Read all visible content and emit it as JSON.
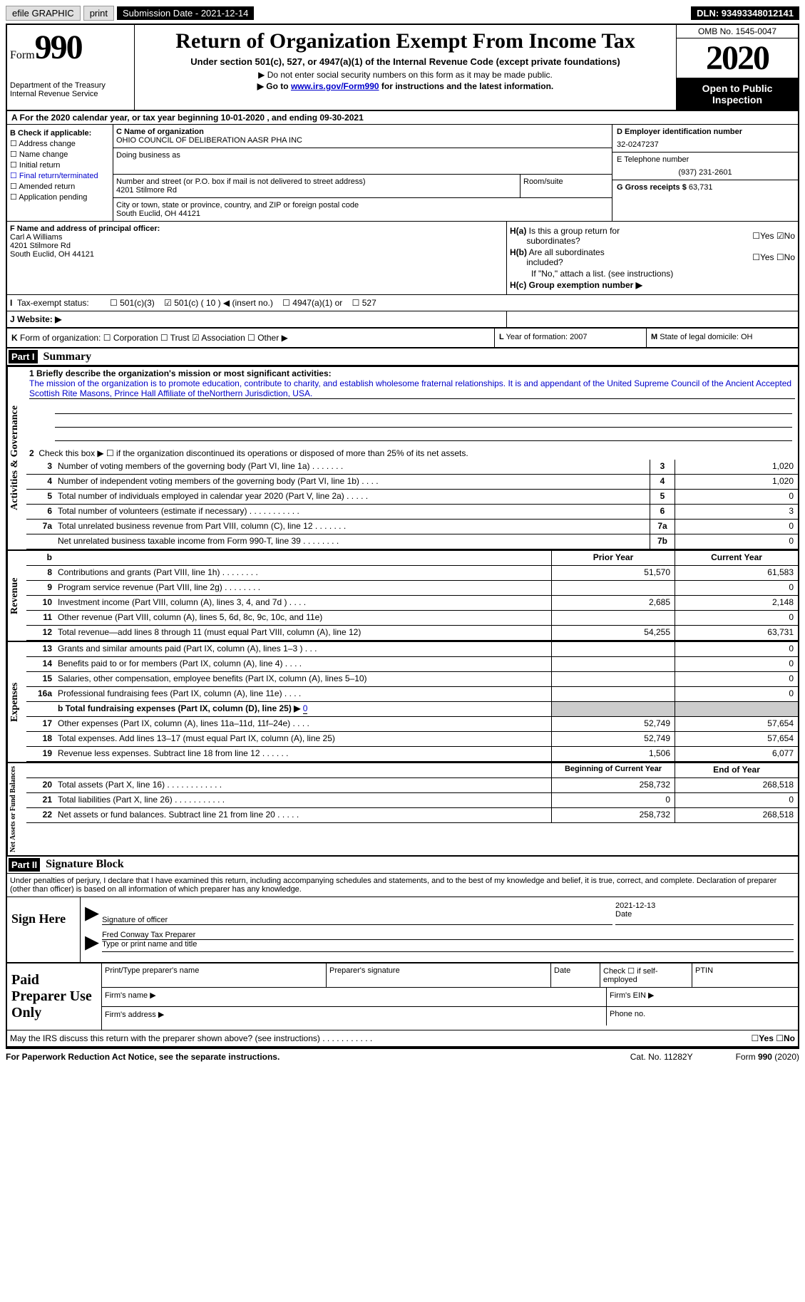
{
  "top_bar": {
    "efile": "efile GRAPHIC",
    "print": "print",
    "submission": "Submission Date - 2021-12-14",
    "dln": "DLN: 93493348012141"
  },
  "header": {
    "form_label": "Form",
    "form_number": "990",
    "dept": "Department of the Treasury\nInternal Revenue Service",
    "title": "Return of Organization Exempt From Income Tax",
    "subtitle": "Under section 501(c), 527, or 4947(a)(1) of the Internal Revenue Code (except private foundations)",
    "note1": "▶ Do not enter social security numbers on this form as it may be made public.",
    "note2_pre": "▶ Go to ",
    "note2_link": "www.irs.gov/Form990",
    "note2_post": " for instructions and the latest information.",
    "omb": "OMB No. 1545-0047",
    "year": "2020",
    "inspection": "Open to Public Inspection"
  },
  "period": "A  For the 2020 calendar year, or tax year beginning 10-01-2020    , and ending 09-30-2021",
  "b_box": {
    "title": "B Check if applicable:",
    "items": [
      "Address change",
      "Name change",
      "Initial return",
      "Final return/terminated",
      "Amended return",
      "Application pending"
    ]
  },
  "c_box": {
    "name_label": "C Name of organization",
    "name": "OHIO COUNCIL OF DELIBERATION AASR PHA INC",
    "dba_label": "Doing business as",
    "addr_label": "Number and street (or P.O. box if mail is not delivered to street address)",
    "addr": "4201 Stilmore Rd",
    "room_label": "Room/suite",
    "city_label": "City or town, state or province, country, and ZIP or foreign postal code",
    "city": "South Euclid, OH  44121"
  },
  "d_box": {
    "ein_label": "D Employer identification number",
    "ein": "32-0247237",
    "phone_label": "E Telephone number",
    "phone": "(937) 231-2601",
    "receipts_label": "G Gross receipts $",
    "receipts": "63,731"
  },
  "f_box": {
    "label": "F Name and address of principal officer:",
    "name": "Carl A Williams",
    "addr1": "4201 Stilmore Rd",
    "addr2": "South Euclid, OH  44121"
  },
  "h_box": {
    "ha_label": "H(a)  Is this a group return for subordinates?",
    "hb_label": "H(b)  Are all subordinates included?",
    "hb_note": "If \"No,\" attach a list. (see instructions)",
    "hc_label": "H(c)  Group exemption number ▶",
    "yes": "Yes",
    "no": "No"
  },
  "i_row": {
    "label": "I  Tax-exempt status:",
    "opt1": "501(c)(3)",
    "opt2": "501(c) ( 10 ) ◀ (insert no.)",
    "opt3": "4947(a)(1) or",
    "opt4": "527"
  },
  "j_row": "J  Website: ▶",
  "k_row": {
    "label": "K Form of organization:",
    "opts": [
      "Corporation",
      "Trust",
      "Association",
      "Other ▶"
    ],
    "l": "L Year of formation: 2007",
    "m": "M State of legal domicile: OH"
  },
  "part1": {
    "header": "Part I",
    "title": "Summary",
    "gov_label": "Activities & Governance",
    "rev_label": "Revenue",
    "exp_label": "Expenses",
    "net_label": "Net Assets or Fund Balances",
    "mission_label": "1   Briefly describe the organization's mission or most significant activities:",
    "mission": "The mission of the organization is to promote education, contribute to charity, and establish wholesome fraternal relationships. It is and appendant of the United Supreme Council of the Ancient Accepted Scottish Rite Masons, Prince Hall Affiliate of theNorthern Jurisdiction, USA.",
    "line2": "Check this box ▶ ☐  if the organization discontinued its operations or disposed of more than 25% of its net assets.",
    "lines": [
      {
        "num": "3",
        "desc": "Number of voting members of the governing body (Part VI, line 1a)  .   .   .   .   .   .   .",
        "box": "3",
        "val": "1,020"
      },
      {
        "num": "4",
        "desc": "Number of independent voting members of the governing body (Part VI, line 1b)   .   .   .   .",
        "box": "4",
        "val": "1,020"
      },
      {
        "num": "5",
        "desc": "Total number of individuals employed in calendar year 2020 (Part V, line 2a)   .   .   .   .   .",
        "box": "5",
        "val": "0"
      },
      {
        "num": "6",
        "desc": "Total number of volunteers (estimate if necessary)   .   .   .   .   .   .   .   .   .   .   .",
        "box": "6",
        "val": "3"
      },
      {
        "num": "7a",
        "desc": "Total unrelated business revenue from Part VIII, column (C), line 12   .   .   .   .   .   .   .",
        "box": "7a",
        "val": "0"
      },
      {
        "num": "",
        "desc": "Net unrelated business taxable income from Form 990-T, line 39   .   .   .   .   .   .   .   .",
        "box": "7b",
        "val": "0"
      }
    ],
    "col_b": "b",
    "col_prior": "Prior Year",
    "col_current": "Current Year",
    "rev_lines": [
      {
        "num": "8",
        "desc": "Contributions and grants (Part VIII, line 1h)   .   .   .   .   .   .   .   .",
        "prior": "51,570",
        "curr": "61,583"
      },
      {
        "num": "9",
        "desc": "Program service revenue (Part VIII, line 2g)   .   .   .   .   .   .   .   .",
        "prior": "",
        "curr": "0"
      },
      {
        "num": "10",
        "desc": "Investment income (Part VIII, column (A), lines 3, 4, and 7d )   .   .   .   .",
        "prior": "2,685",
        "curr": "2,148"
      },
      {
        "num": "11",
        "desc": "Other revenue (Part VIII, column (A), lines 5, 6d, 8c, 9c, 10c, and 11e)",
        "prior": "",
        "curr": "0"
      },
      {
        "num": "12",
        "desc": "Total revenue—add lines 8 through 11 (must equal Part VIII, column (A), line 12)",
        "prior": "54,255",
        "curr": "63,731"
      }
    ],
    "exp_lines": [
      {
        "num": "13",
        "desc": "Grants and similar amounts paid (Part IX, column (A), lines 1–3 )   .   .   .",
        "prior": "",
        "curr": "0"
      },
      {
        "num": "14",
        "desc": "Benefits paid to or for members (Part IX, column (A), line 4)   .   .   .   .",
        "prior": "",
        "curr": "0"
      },
      {
        "num": "15",
        "desc": "Salaries, other compensation, employee benefits (Part IX, column (A), lines 5–10)",
        "prior": "",
        "curr": "0"
      },
      {
        "num": "16a",
        "desc": "Professional fundraising fees (Part IX, column (A), line 11e)   .   .   .   .",
        "prior": "",
        "curr": "0"
      }
    ],
    "line16b_label": "b  Total fundraising expenses (Part IX, column (D), line 25) ▶",
    "line16b_val": "0",
    "exp_lines2": [
      {
        "num": "17",
        "desc": "Other expenses (Part IX, column (A), lines 11a–11d, 11f–24e)   .   .   .   .",
        "prior": "52,749",
        "curr": "57,654"
      },
      {
        "num": "18",
        "desc": "Total expenses. Add lines 13–17 (must equal Part IX, column (A), line 25)",
        "prior": "52,749",
        "curr": "57,654"
      },
      {
        "num": "19",
        "desc": "Revenue less expenses. Subtract line 18 from line 12   .   .   .   .   .   .",
        "prior": "1,506",
        "curr": "6,077"
      }
    ],
    "col_begin": "Beginning of Current Year",
    "col_end": "End of Year",
    "net_lines": [
      {
        "num": "20",
        "desc": "Total assets (Part X, line 16)   .   .   .   .   .   .   .   .   .   .   .   .",
        "prior": "258,732",
        "curr": "268,518"
      },
      {
        "num": "21",
        "desc": "Total liabilities (Part X, line 26)   .   .   .   .   .   .   .   .   .   .   .",
        "prior": "0",
        "curr": "0"
      },
      {
        "num": "22",
        "desc": "Net assets or fund balances. Subtract line 21 from line 20   .   .   .   .   .",
        "prior": "258,732",
        "curr": "268,518"
      }
    ]
  },
  "part2": {
    "header": "Part II",
    "title": "Signature Block",
    "penalties": "Under penalties of perjury, I declare that I have examined this return, including accompanying schedules and statements, and to the best of my knowledge and belief, it is true, correct, and complete. Declaration of preparer (other than officer) is based on all information of which preparer has any knowledge.",
    "sign_here": "Sign Here",
    "sig_label": "Signature of officer",
    "date_label": "Date",
    "date": "2021-12-13",
    "name": "Fred Conway  Tax Preparer",
    "name_label": "Type or print name and title",
    "paid": "Paid Preparer Use Only",
    "p_name": "Print/Type preparer's name",
    "p_sig": "Preparer's signature",
    "p_date": "Date",
    "p_check": "Check ☐ if self-employed",
    "p_ptin": "PTIN",
    "p_firm": "Firm's name   ▶",
    "p_ein": "Firm's EIN ▶",
    "p_addr": "Firm's address ▶",
    "p_phone": "Phone no."
  },
  "discuss": "May the IRS discuss this return with the preparer shown above? (see instructions)   .   .   .   .   .   .   .   .   .   .   .",
  "footer": {
    "pra": "For Paperwork Reduction Act Notice, see the separate instructions.",
    "cat": "Cat. No. 11282Y",
    "form": "Form 990 (2020)"
  }
}
